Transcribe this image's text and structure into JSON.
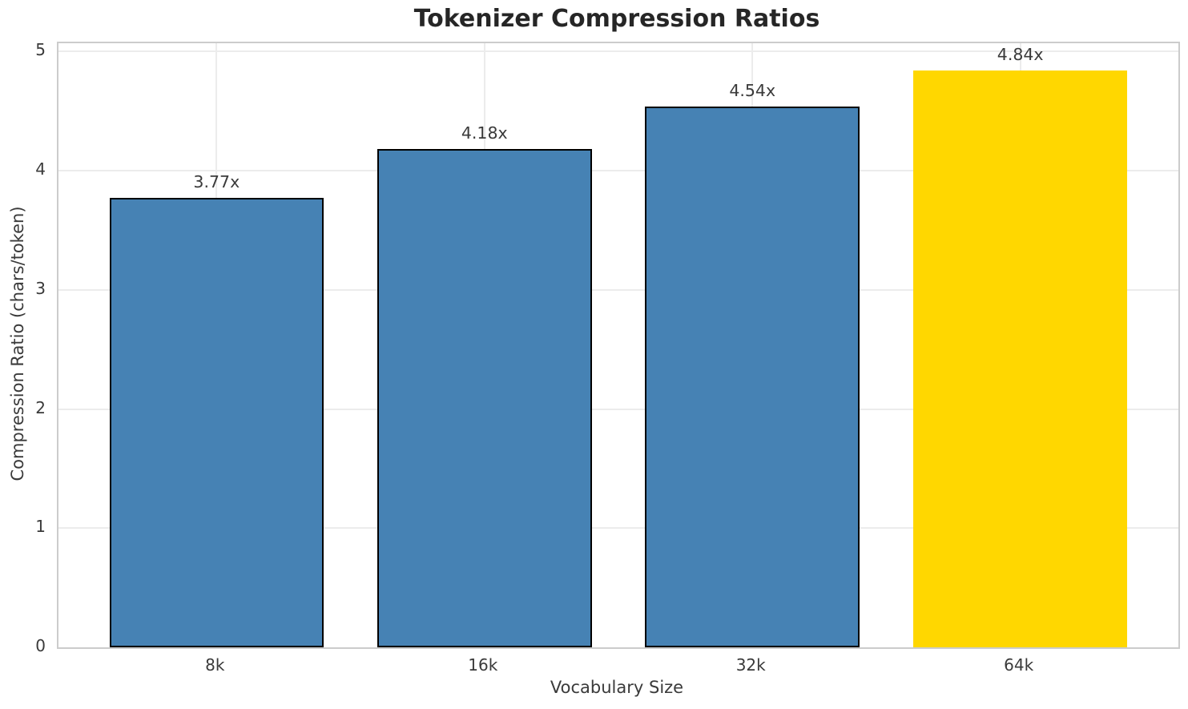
{
  "chart_data": {
    "type": "bar",
    "title": "Tokenizer Compression Ratios",
    "xlabel": "Vocabulary Size",
    "ylabel": "Compression Ratio (chars/token)",
    "categories": [
      "8k",
      "16k",
      "32k",
      "64k"
    ],
    "values": [
      3.77,
      4.18,
      4.54,
      4.84
    ],
    "value_labels": [
      "3.77x",
      "4.18x",
      "4.54x",
      "4.84x"
    ],
    "yticks": [
      0,
      1,
      2,
      3,
      4,
      5
    ],
    "ylim": [
      0,
      5.07
    ],
    "grid": true,
    "legend": "none",
    "colors": {
      "bar_base": "#4682b4",
      "bar_highlight": "#ffd700",
      "bar_edge": "#000000",
      "grid_line": "#ececec",
      "spine": "#cccccc",
      "title_text": "#262626",
      "tick_text": "#3a3a3a"
    },
    "bar_colors": [
      "#4682b4",
      "#4682b4",
      "#4682b4",
      "#ffd700"
    ],
    "bar_edge_colors": [
      "#000000",
      "#000000",
      "#000000",
      "none"
    ]
  }
}
